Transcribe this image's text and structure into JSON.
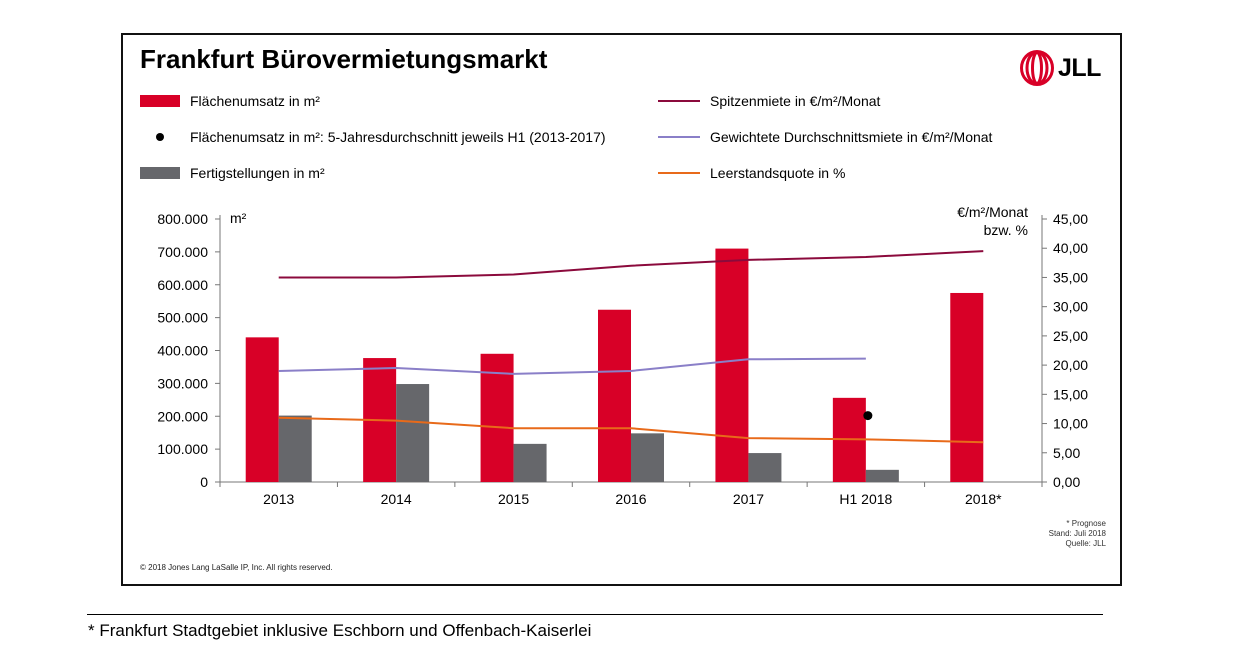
{
  "page": {
    "title": "Frankfurt Bürovermietungsmarkt",
    "footnote": "* Frankfurt Stadtgebiet inklusive Eschborn und Offenbach-Kaiserlei"
  },
  "logo": {
    "text": "JLL"
  },
  "legend": {
    "take_up": "Flächenumsatz in m²",
    "take_up_avg": "Flächenumsatz in m²: 5-Jahresdurchschnitt jeweils H1 (2013-2017)",
    "completions": "Fertigstellungen in m²",
    "prime_rent": "Spitzenmiete in €/m²/Monat",
    "avg_rent": "Gewichtete Durchschnittsmiete in €/m²/Monat",
    "vacancy": "Leerstandsquote in %"
  },
  "notes": {
    "line1": "* Prognose",
    "line2": "Stand: Juli 2018",
    "line3": "Quelle: JLL"
  },
  "copyright": "© 2018 Jones Lang LaSalle IP, Inc. All rights reserved.",
  "colors": {
    "take_up": "#d80027",
    "completions": "#66676b",
    "prime_rent": "#8b0a3c",
    "avg_rent": "#8a7fc8",
    "vacancy": "#e86a1a"
  },
  "chart_data": {
    "type": "bar",
    "categories": [
      "2013",
      "2014",
      "2015",
      "2016",
      "2017",
      "H1 2018",
      "2018*"
    ],
    "series": [
      {
        "name": "Flächenumsatz in m²",
        "type": "bar",
        "axis": "left",
        "values": [
          440000,
          377000,
          390000,
          524000,
          710000,
          256000,
          575000
        ]
      },
      {
        "name": "Fertigstellungen in m²",
        "type": "bar",
        "axis": "left",
        "values": [
          202000,
          298000,
          116000,
          148000,
          88000,
          37000,
          null
        ]
      },
      {
        "name": "Flächenumsatz in m²: 5-Jahresdurchschnitt jeweils H1 (2013-2017)",
        "type": "scatter",
        "axis": "left",
        "values": [
          null,
          null,
          null,
          null,
          null,
          202000,
          null
        ]
      },
      {
        "name": "Spitzenmiete in €/m²/Monat",
        "type": "line",
        "axis": "right",
        "values": [
          35.0,
          35.0,
          35.5,
          37.0,
          38.0,
          38.5,
          39.5
        ]
      },
      {
        "name": "Gewichtete Durchschnittsmiete in €/m²/Monat",
        "type": "line",
        "axis": "right",
        "values": [
          19.0,
          19.5,
          18.5,
          19.0,
          21.0,
          21.1,
          null
        ]
      },
      {
        "name": "Leerstandsquote in %",
        "type": "line",
        "axis": "right",
        "values": [
          11.0,
          10.5,
          9.2,
          9.2,
          7.5,
          7.3,
          6.8
        ]
      }
    ],
    "yleft": {
      "label": "m²",
      "ylim": [
        0,
        800000
      ],
      "ticks": [
        "0",
        "100.000",
        "200.000",
        "300.000",
        "400.000",
        "500.000",
        "600.000",
        "700.000",
        "800.000"
      ]
    },
    "yright": {
      "label_line1": "€/m²/Monat",
      "label_line2": "bzw. %",
      "ylim": [
        0,
        45
      ],
      "ticks": [
        "0,00",
        "5,00",
        "10,00",
        "15,00",
        "20,00",
        "25,00",
        "30,00",
        "35,00",
        "40,00",
        "45,00"
      ]
    }
  }
}
